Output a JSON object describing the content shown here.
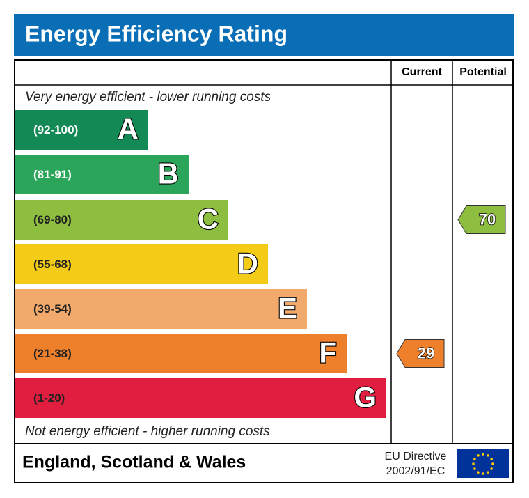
{
  "header": {
    "title": "Energy Efficiency Rating"
  },
  "columns": {
    "current": "Current",
    "potential": "Potential"
  },
  "top_note": "Very energy efficient - lower running costs",
  "bottom_note": "Not energy efficient - higher running costs",
  "bands": [
    {
      "range": "(92-100)",
      "letter": "A"
    },
    {
      "range": "(81-91)",
      "letter": "B"
    },
    {
      "range": "(69-80)",
      "letter": "C"
    },
    {
      "range": "(55-68)",
      "letter": "D"
    },
    {
      "range": "(39-54)",
      "letter": "E"
    },
    {
      "range": "(21-38)",
      "letter": "F"
    },
    {
      "range": "(1-20)",
      "letter": "G"
    }
  ],
  "ratings": {
    "current": "29",
    "potential": "70"
  },
  "footer": {
    "region": "England, Scotland & Wales",
    "directive_line1": "EU Directive",
    "directive_line2": "2002/91/EC"
  }
}
